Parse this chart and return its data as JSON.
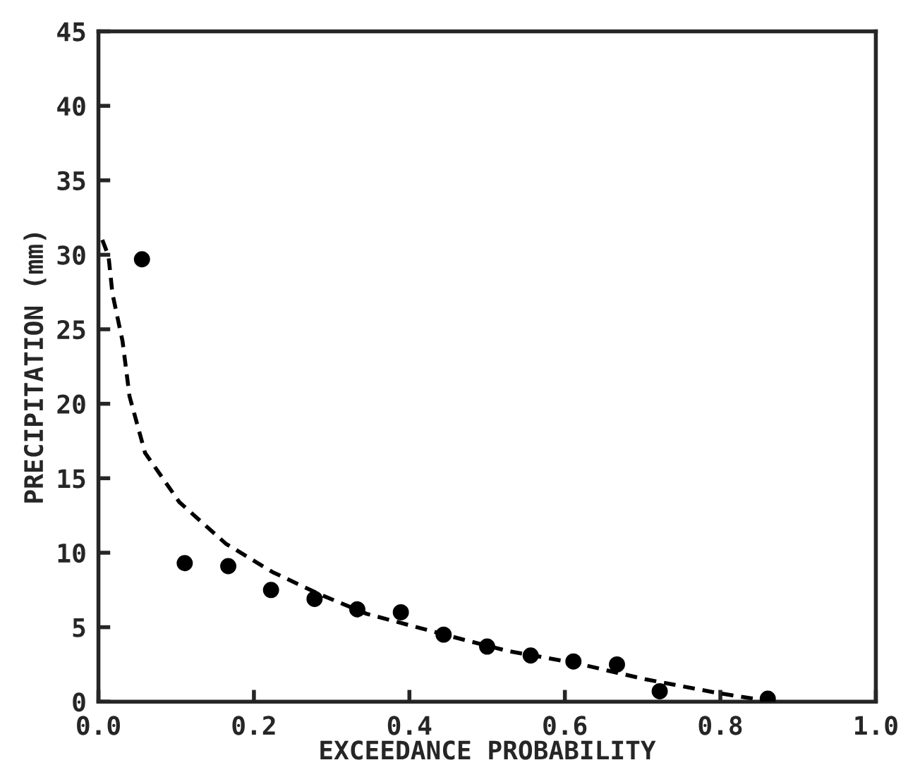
{
  "chart_data": {
    "type": "scatter",
    "xlabel": "EXCEEDANCE PROBABILITY",
    "ylabel": "PRECIPITATION (mm)",
    "xlim": [
      0,
      1
    ],
    "ylim": [
      0,
      45
    ],
    "xticks": [
      {
        "value": 0,
        "label": "0.0"
      },
      {
        "value": 0.2,
        "label": "0.2"
      },
      {
        "value": 0.4,
        "label": "0.4"
      },
      {
        "value": 0.6,
        "label": "0.6"
      },
      {
        "value": 0.8,
        "label": "0.8"
      },
      {
        "value": 1,
        "label": "1.0"
      }
    ],
    "yticks": [
      0,
      5,
      10,
      15,
      20,
      25,
      30,
      35,
      40,
      45
    ],
    "grid": false,
    "legend": false,
    "series": [
      {
        "color": "#000000",
        "marker": "circle",
        "x": [
          0.056,
          0.111,
          0.167,
          0.222,
          0.278,
          0.333,
          0.389,
          0.444,
          0.5,
          0.556,
          0.611,
          0.667,
          0.722,
          0.861
        ],
        "values": [
          29.7,
          9.3,
          9.1,
          7.5,
          6.9,
          6.2,
          6.0,
          4.5,
          3.7,
          3.1,
          2.7,
          2.5,
          0.7,
          0.2
        ]
      },
      {
        "type": "line",
        "color": "#000000",
        "marker": "none",
        "line_style": "dashed",
        "x": [
          0.005,
          0.013,
          0.018,
          0.031,
          0.04,
          0.06,
          0.104,
          0.164,
          0.224,
          0.285,
          0.345,
          0.467,
          0.527,
          0.613,
          0.704,
          0.795,
          0.855
        ],
        "values": [
          31,
          29.9,
          27.4,
          24.2,
          20.5,
          16.7,
          13.4,
          10.6,
          8.7,
          7.2,
          5.9,
          4.2,
          3.4,
          2.6,
          1.5,
          0.6,
          0.1
        ]
      }
    ]
  }
}
